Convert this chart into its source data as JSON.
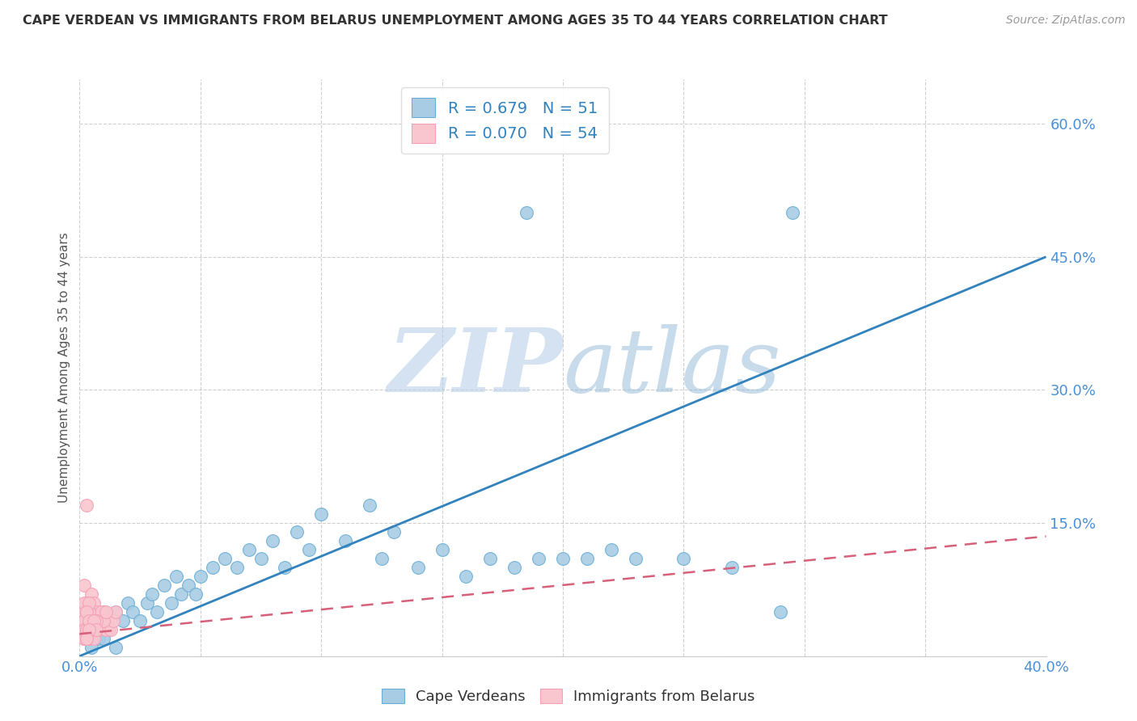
{
  "title": "CAPE VERDEAN VS IMMIGRANTS FROM BELARUS UNEMPLOYMENT AMONG AGES 35 TO 44 YEARS CORRELATION CHART",
  "source": "Source: ZipAtlas.com",
  "ylabel": "Unemployment Among Ages 35 to 44 years",
  "xlim": [
    0.0,
    0.4
  ],
  "ylim": [
    0.0,
    0.65
  ],
  "xtick_positions": [
    0.0,
    0.05,
    0.1,
    0.15,
    0.2,
    0.25,
    0.3,
    0.35,
    0.4
  ],
  "xtick_labels": [
    "0.0%",
    "",
    "",
    "",
    "",
    "",
    "",
    "",
    "40.0%"
  ],
  "ytick_positions": [
    0.0,
    0.15,
    0.3,
    0.45,
    0.6
  ],
  "ytick_labels": [
    "",
    "15.0%",
    "30.0%",
    "45.0%",
    "60.0%"
  ],
  "blue_color": "#a8cce4",
  "blue_edge_color": "#6aaed6",
  "pink_color": "#f9c6cf",
  "pink_edge_color": "#f4a0b5",
  "blue_line_color": "#3182bd",
  "pink_line_color": "#d6607a",
  "blue_line_x0": 0.0,
  "blue_line_y0": 0.0,
  "blue_line_x1": 0.4,
  "blue_line_y1": 0.45,
  "pink_line_x0": 0.0,
  "pink_line_y0": 0.025,
  "pink_line_x1": 0.4,
  "pink_line_y1": 0.135,
  "watermark_zip": "ZIP",
  "watermark_atlas": "atlas",
  "watermark_color_zip": "#c8ddf0",
  "watermark_color_atlas": "#a8c8e0",
  "legend_label1": "R = 0.679   N = 51",
  "legend_label2": "R = 0.070   N = 54",
  "blue_scatter_x": [
    0.005,
    0.008,
    0.01,
    0.012,
    0.015,
    0.018,
    0.02,
    0.022,
    0.025,
    0.028,
    0.03,
    0.032,
    0.035,
    0.038,
    0.04,
    0.042,
    0.045,
    0.048,
    0.05,
    0.055,
    0.06,
    0.065,
    0.07,
    0.075,
    0.08,
    0.085,
    0.09,
    0.095,
    0.1,
    0.11,
    0.12,
    0.125,
    0.13,
    0.14,
    0.15,
    0.16,
    0.17,
    0.18,
    0.19,
    0.2,
    0.21,
    0.22,
    0.23,
    0.25,
    0.27,
    0.29,
    0.005,
    0.01,
    0.015,
    0.185,
    0.295
  ],
  "blue_scatter_y": [
    0.03,
    0.02,
    0.04,
    0.03,
    0.05,
    0.04,
    0.06,
    0.05,
    0.04,
    0.06,
    0.07,
    0.05,
    0.08,
    0.06,
    0.09,
    0.07,
    0.08,
    0.07,
    0.09,
    0.1,
    0.11,
    0.1,
    0.12,
    0.11,
    0.13,
    0.1,
    0.14,
    0.12,
    0.16,
    0.13,
    0.17,
    0.11,
    0.14,
    0.1,
    0.12,
    0.09,
    0.11,
    0.1,
    0.11,
    0.11,
    0.11,
    0.12,
    0.11,
    0.11,
    0.1,
    0.05,
    0.01,
    0.02,
    0.01,
    0.5,
    0.5
  ],
  "pink_scatter_x": [
    0.002,
    0.003,
    0.004,
    0.005,
    0.006,
    0.007,
    0.008,
    0.009,
    0.01,
    0.011,
    0.012,
    0.013,
    0.014,
    0.015,
    0.002,
    0.003,
    0.004,
    0.005,
    0.006,
    0.007,
    0.008,
    0.009,
    0.01,
    0.011,
    0.002,
    0.003,
    0.004,
    0.005,
    0.006,
    0.007,
    0.002,
    0.003,
    0.004,
    0.005,
    0.006,
    0.002,
    0.003,
    0.004,
    0.005,
    0.002,
    0.003,
    0.004,
    0.002,
    0.003,
    0.002,
    0.003,
    0.004,
    0.005,
    0.006,
    0.007,
    0.002,
    0.003,
    0.004,
    0.003
  ],
  "pink_scatter_y": [
    0.03,
    0.17,
    0.04,
    0.03,
    0.05,
    0.04,
    0.03,
    0.04,
    0.05,
    0.03,
    0.04,
    0.03,
    0.04,
    0.05,
    0.08,
    0.06,
    0.05,
    0.07,
    0.06,
    0.05,
    0.04,
    0.05,
    0.04,
    0.05,
    0.03,
    0.04,
    0.03,
    0.04,
    0.03,
    0.04,
    0.02,
    0.03,
    0.02,
    0.03,
    0.02,
    0.05,
    0.04,
    0.05,
    0.04,
    0.06,
    0.05,
    0.06,
    0.04,
    0.05,
    0.03,
    0.03,
    0.04,
    0.03,
    0.04,
    0.03,
    0.02,
    0.02,
    0.03,
    0.02
  ]
}
